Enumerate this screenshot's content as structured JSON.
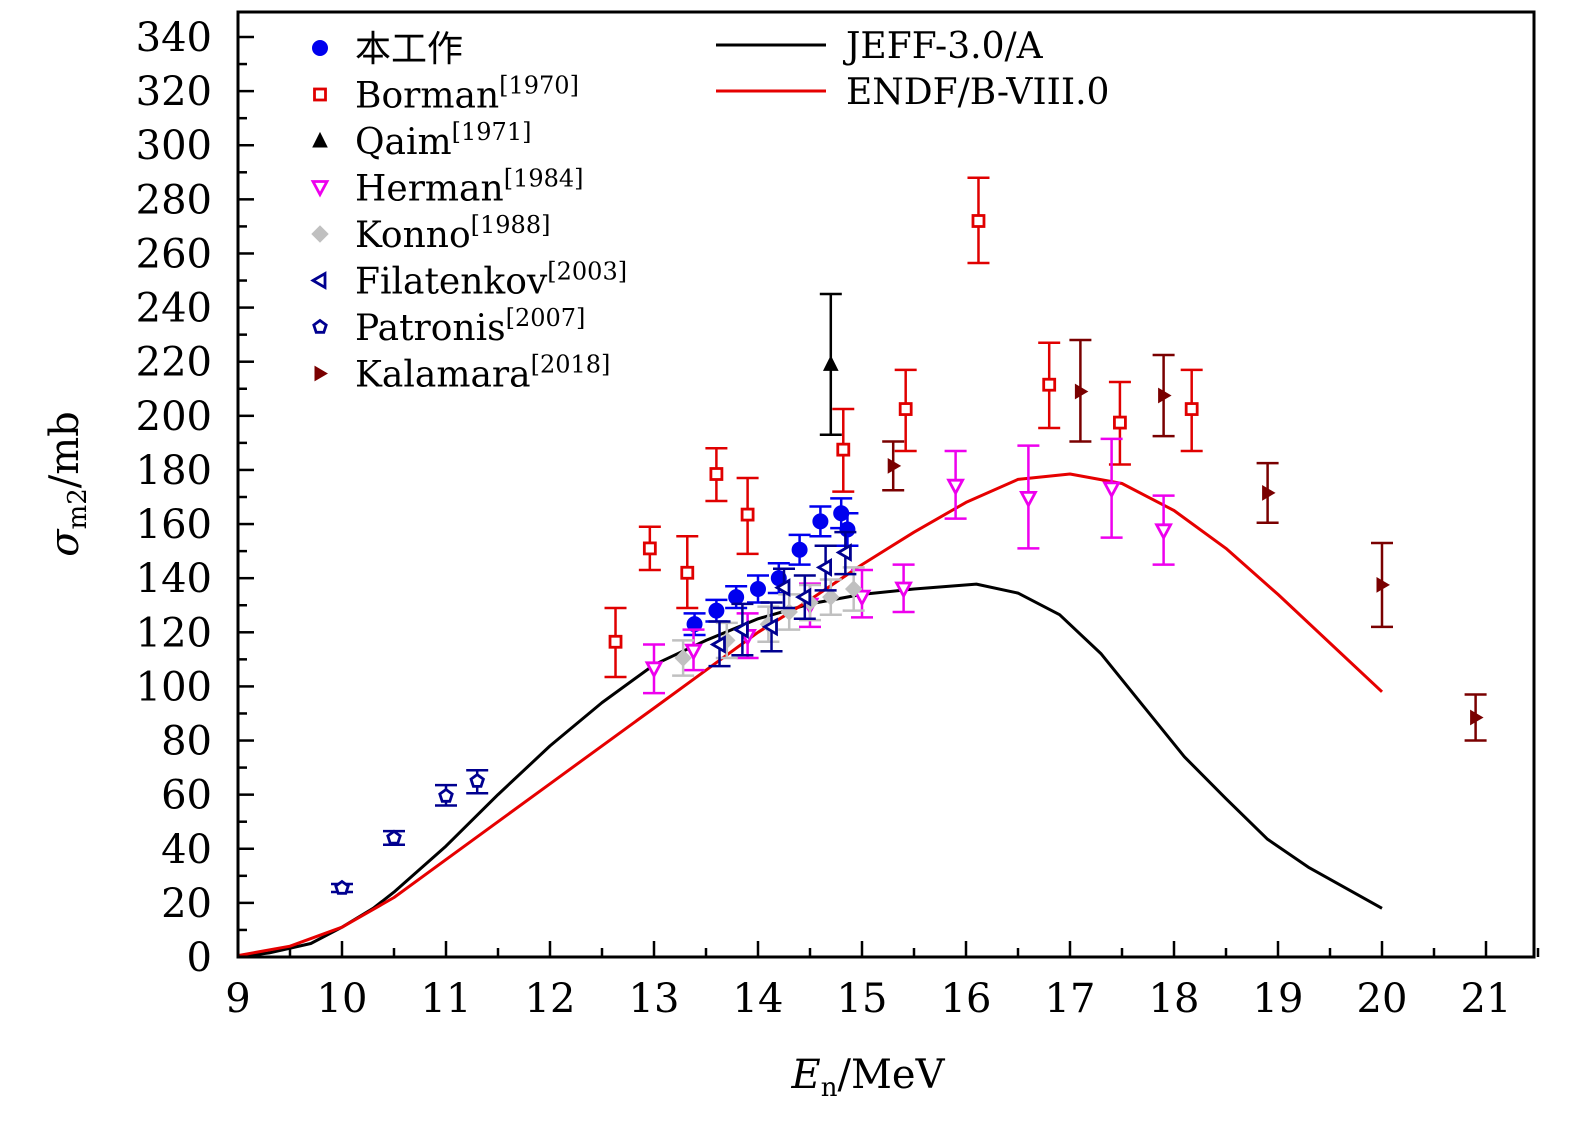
{
  "chart_data": {
    "type": "scatter",
    "title": "",
    "xlabel": "E_n/MeV",
    "xlabel_main": "E",
    "xlabel_sub": "n",
    "xlabel_unit": "/MeV",
    "ylabel": "σ_m2/mb",
    "ylabel_main": "σ",
    "ylabel_sub": "m2",
    "ylabel_unit": "/mb",
    "xlim": [
      9,
      21.5
    ],
    "ylim": [
      0,
      345
    ],
    "xticks": [
      9,
      10,
      11,
      12,
      13,
      14,
      15,
      16,
      17,
      18,
      19,
      20,
      21
    ],
    "yticks": [
      0,
      20,
      40,
      60,
      80,
      100,
      120,
      140,
      160,
      180,
      200,
      220,
      240,
      260,
      280,
      300,
      320,
      340
    ],
    "grid": false,
    "legend_placement": "top-left",
    "legend2_placement": "top-center",
    "series": [
      {
        "name": "本工作",
        "sup": "",
        "marker": "circle",
        "filled": true,
        "color": "#0000ee",
        "points": [
          {
            "x": 13.39,
            "y": 123,
            "lo": 119,
            "hi": 127
          },
          {
            "x": 13.6,
            "y": 128,
            "lo": 124,
            "hi": 132
          },
          {
            "x": 13.79,
            "y": 133,
            "lo": 129,
            "hi": 137
          },
          {
            "x": 14.0,
            "y": 136,
            "lo": 131,
            "hi": 141
          },
          {
            "x": 14.2,
            "y": 140,
            "lo": 134.5,
            "hi": 145.5
          },
          {
            "x": 14.4,
            "y": 150.5,
            "lo": 145,
            "hi": 156
          },
          {
            "x": 14.6,
            "y": 161,
            "lo": 155.5,
            "hi": 166.5
          },
          {
            "x": 14.8,
            "y": 164,
            "lo": 158.5,
            "hi": 169.5
          },
          {
            "x": 14.86,
            "y": 158,
            "lo": 152,
            "hi": 164
          }
        ]
      },
      {
        "name": "Borman",
        "sup": "[1970]",
        "marker": "square",
        "filled": false,
        "color": "#e00000",
        "points": [
          {
            "x": 12.63,
            "y": 116.5,
            "lo": 103.5,
            "hi": 129
          },
          {
            "x": 12.96,
            "y": 151,
            "lo": 143,
            "hi": 159
          },
          {
            "x": 13.32,
            "y": 142,
            "lo": 129,
            "hi": 155.5
          },
          {
            "x": 13.6,
            "y": 178.5,
            "lo": 168.5,
            "hi": 188
          },
          {
            "x": 13.9,
            "y": 163.5,
            "lo": 149,
            "hi": 177
          },
          {
            "x": 14.82,
            "y": 187.5,
            "lo": 172,
            "hi": 202.5
          },
          {
            "x": 15.42,
            "y": 202.5,
            "lo": 187,
            "hi": 217
          },
          {
            "x": 16.12,
            "y": 272,
            "lo": 256.5,
            "hi": 288
          },
          {
            "x": 16.8,
            "y": 211.5,
            "lo": 195.5,
            "hi": 227
          },
          {
            "x": 17.48,
            "y": 197.5,
            "lo": 182,
            "hi": 212.5
          },
          {
            "x": 18.17,
            "y": 202.5,
            "lo": 187,
            "hi": 217
          }
        ]
      },
      {
        "name": "Qaim",
        "sup": "[1971]",
        "marker": "triangle-up",
        "filled": true,
        "color": "#000000",
        "points": [
          {
            "x": 14.7,
            "y": 219,
            "lo": 193,
            "hi": 245
          }
        ]
      },
      {
        "name": "Herman",
        "sup": "[1984]",
        "marker": "triangle-down",
        "filled": false,
        "color": "#ee00ee",
        "points": [
          {
            "x": 13.0,
            "y": 106.5,
            "lo": 97.5,
            "hi": 115.5
          },
          {
            "x": 13.38,
            "y": 113,
            "lo": 106,
            "hi": 121
          },
          {
            "x": 13.9,
            "y": 118.5,
            "lo": 110.5,
            "hi": 127
          },
          {
            "x": 14.5,
            "y": 130,
            "lo": 122,
            "hi": 138
          },
          {
            "x": 15.0,
            "y": 133,
            "lo": 125.5,
            "hi": 143
          },
          {
            "x": 15.4,
            "y": 136,
            "lo": 127.5,
            "hi": 145
          },
          {
            "x": 15.9,
            "y": 174,
            "lo": 162,
            "hi": 187
          },
          {
            "x": 16.6,
            "y": 169.5,
            "lo": 151,
            "hi": 189
          },
          {
            "x": 17.4,
            "y": 173,
            "lo": 155,
            "hi": 191.5
          },
          {
            "x": 17.9,
            "y": 157.5,
            "lo": 145,
            "hi": 170.5
          }
        ]
      },
      {
        "name": "Konno",
        "sup": "[1988]",
        "marker": "diamond",
        "filled": true,
        "color": "#c0c0c0",
        "points": [
          {
            "x": 13.28,
            "y": 110.5,
            "lo": 104,
            "hi": 117
          },
          {
            "x": 13.7,
            "y": 117,
            "lo": 110.5,
            "hi": 123.5
          },
          {
            "x": 14.1,
            "y": 123,
            "lo": 116.5,
            "hi": 129.5
          },
          {
            "x": 14.3,
            "y": 127.5,
            "lo": 121,
            "hi": 134
          },
          {
            "x": 14.5,
            "y": 131,
            "lo": 124.5,
            "hi": 137.5
          },
          {
            "x": 14.7,
            "y": 133,
            "lo": 126.5,
            "hi": 139.5
          },
          {
            "x": 14.92,
            "y": 136,
            "lo": 128,
            "hi": 144
          }
        ]
      },
      {
        "name": "Filatenkov",
        "sup": "[2003]",
        "marker": "triangle-left",
        "filled": false,
        "color": "#000090",
        "points": [
          {
            "x": 13.63,
            "y": 115.5,
            "lo": 107.5,
            "hi": 124
          },
          {
            "x": 13.85,
            "y": 121,
            "lo": 111.5,
            "hi": 130.5
          },
          {
            "x": 14.13,
            "y": 122,
            "lo": 113,
            "hi": 131
          },
          {
            "x": 14.25,
            "y": 136.5,
            "lo": 129,
            "hi": 143.5
          },
          {
            "x": 14.45,
            "y": 133,
            "lo": 125,
            "hi": 141
          },
          {
            "x": 14.65,
            "y": 144,
            "lo": 135.5,
            "hi": 152
          },
          {
            "x": 14.84,
            "y": 149.5,
            "lo": 141.5,
            "hi": 157
          }
        ]
      },
      {
        "name": "Patronis",
        "sup": "[2007]",
        "marker": "pentagon",
        "filled": false,
        "color": "#000090",
        "points": [
          {
            "x": 10.0,
            "y": 25.5,
            "lo": 24,
            "hi": 27
          },
          {
            "x": 10.5,
            "y": 44,
            "lo": 41.5,
            "hi": 46.5
          },
          {
            "x": 11.0,
            "y": 59.5,
            "lo": 56,
            "hi": 63.5
          },
          {
            "x": 11.3,
            "y": 65,
            "lo": 60.5,
            "hi": 69
          }
        ]
      },
      {
        "name": "Kalamara",
        "sup": "[2018]",
        "marker": "triangle-right",
        "filled": true,
        "color": "#7a0000",
        "points": [
          {
            "x": 15.3,
            "y": 181.5,
            "lo": 172.5,
            "hi": 190.5
          },
          {
            "x": 17.1,
            "y": 209,
            "lo": 190.5,
            "hi": 228
          },
          {
            "x": 17.9,
            "y": 207.5,
            "lo": 192.5,
            "hi": 222.5
          },
          {
            "x": 18.9,
            "y": 171.5,
            "lo": 160.5,
            "hi": 182.5
          },
          {
            "x": 20.0,
            "y": 137.5,
            "lo": 122,
            "hi": 153
          },
          {
            "x": 20.9,
            "y": 88.5,
            "lo": 80,
            "hi": 97
          }
        ]
      }
    ],
    "lines": [
      {
        "name": "JEFF-3.0/A",
        "color": "#000000",
        "x": [
          9.0,
          9.3,
          9.7,
          10.0,
          10.3,
          10.5,
          11.0,
          11.5,
          12.0,
          12.5,
          13.0,
          13.5,
          14.0,
          14.5,
          15.0,
          15.5,
          16.1,
          16.5,
          16.9,
          17.3,
          17.7,
          18.1,
          18.5,
          18.9,
          19.3,
          20.0
        ],
        "y": [
          0,
          1.5,
          5,
          11,
          18,
          24,
          41,
          60,
          78,
          94,
          108,
          117,
          125,
          130.5,
          134,
          136,
          137.8,
          134.5,
          126.5,
          112,
          93,
          74,
          58.5,
          43.5,
          33,
          18
        ]
      },
      {
        "name": "ENDF/B-VIII.0",
        "color": "#e60000",
        "x": [
          9.0,
          9.5,
          10.0,
          10.5,
          11.0,
          11.5,
          12.0,
          12.5,
          13.0,
          13.5,
          14.0,
          14.5,
          15.0,
          15.5,
          16.0,
          16.5,
          17.0,
          17.5,
          18.0,
          18.5,
          19.0,
          19.5,
          20.0
        ],
        "y": [
          0.5,
          4,
          11,
          22,
          36,
          50,
          64,
          78,
          92,
          106,
          120,
          132,
          145,
          157,
          168,
          176.5,
          178.5,
          175,
          165,
          151,
          134,
          116,
          98
        ]
      }
    ]
  }
}
